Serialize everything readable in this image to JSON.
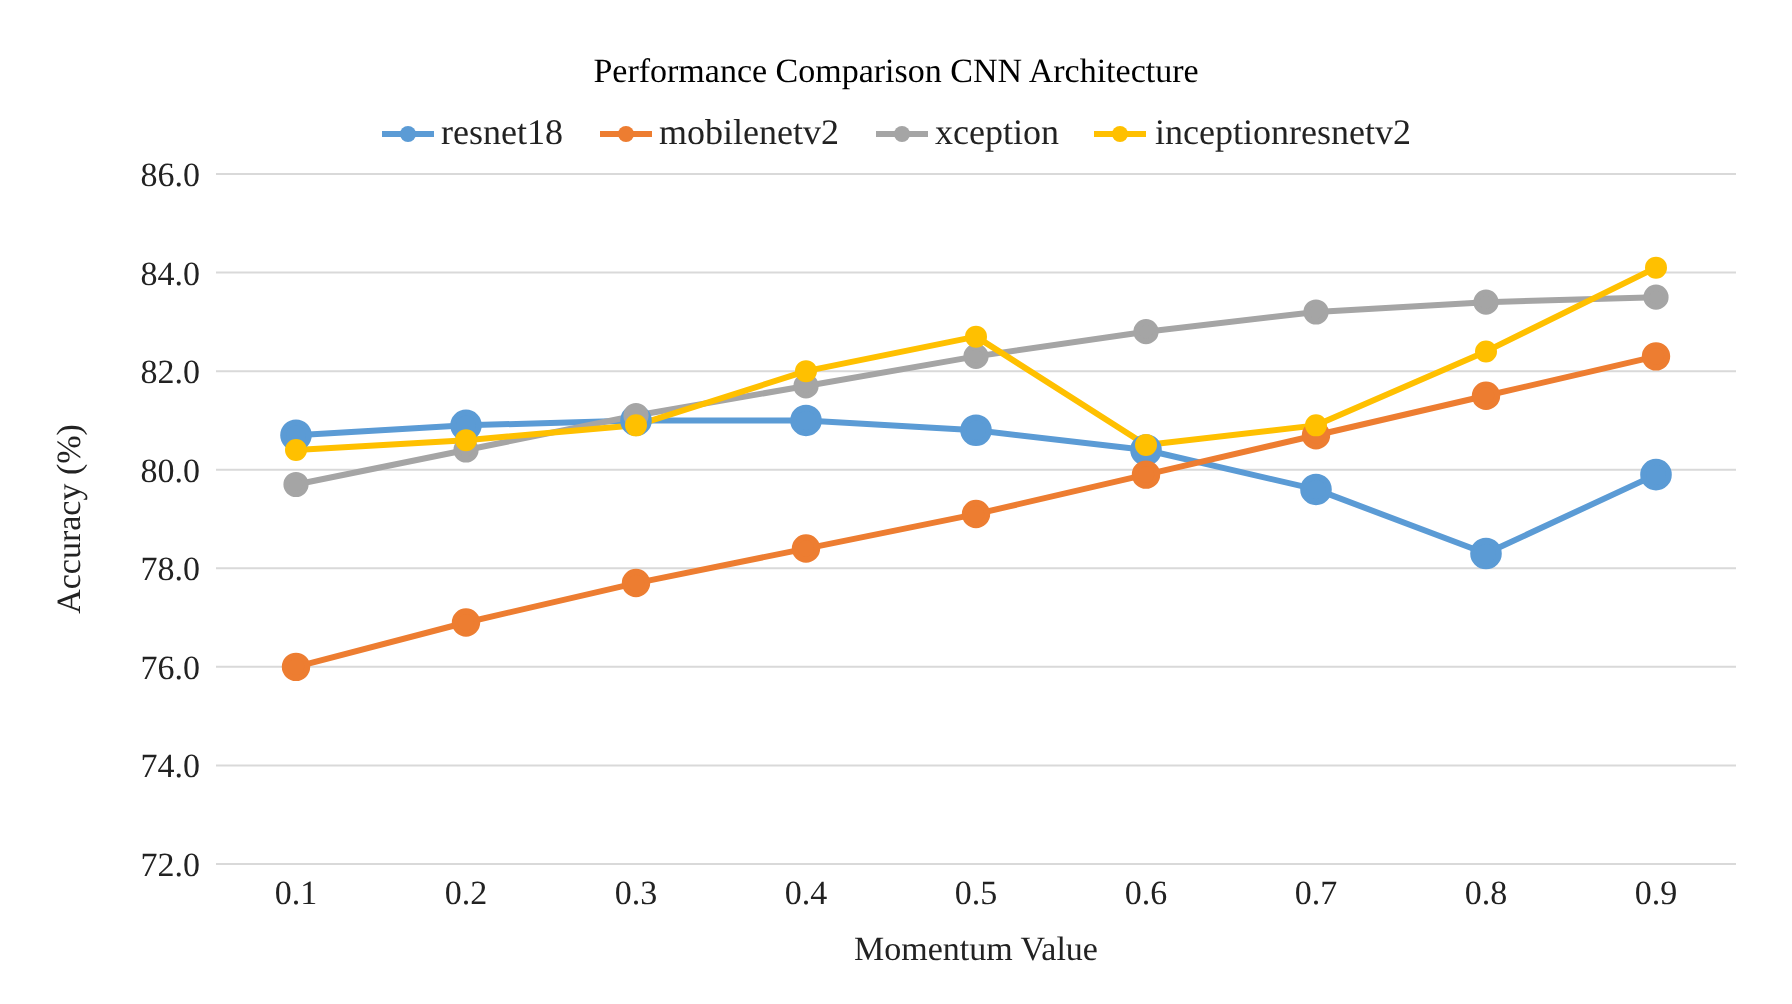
{
  "chart_data": {
    "type": "line",
    "title": "Performance Comparison CNN Architecture",
    "xlabel": "Momentum Value",
    "ylabel": "Accuracy (%)",
    "categories": [
      "0.1",
      "0.2",
      "0.3",
      "0.4",
      "0.5",
      "0.6",
      "0.7",
      "0.8",
      "0.9"
    ],
    "series": [
      {
        "name": "resnet18",
        "color": "#5b9bd5",
        "values": [
          80.7,
          80.9,
          81.0,
          81.0,
          80.8,
          80.4,
          79.6,
          78.3,
          79.9
        ]
      },
      {
        "name": "mobilenetv2",
        "color": "#ed7d31",
        "values": [
          76.0,
          76.9,
          77.7,
          78.4,
          79.1,
          79.9,
          80.7,
          81.5,
          82.3
        ]
      },
      {
        "name": "xception",
        "color": "#a5a5a5",
        "values": [
          79.7,
          80.4,
          81.1,
          81.7,
          82.3,
          82.8,
          83.2,
          83.4,
          83.5
        ]
      },
      {
        "name": "inceptionresnetv2",
        "color": "#ffc000",
        "values": [
          80.4,
          80.6,
          80.9,
          82.0,
          82.7,
          80.5,
          80.9,
          82.4,
          84.1
        ]
      }
    ],
    "ylim": [
      72,
      86
    ],
    "yticks": [
      {
        "value": 72,
        "label": "72.0"
      },
      {
        "value": 74,
        "label": "74.0"
      },
      {
        "value": 76,
        "label": "76.0"
      },
      {
        "value": 78,
        "label": "78.0"
      },
      {
        "value": 80,
        "label": "80.0"
      },
      {
        "value": 82,
        "label": "82.0"
      },
      {
        "value": 84,
        "label": "84.0"
      },
      {
        "value": 86,
        "label": "86.0"
      }
    ],
    "grid": "y",
    "legend": "top",
    "marker": "circle",
    "line_style": "solid"
  }
}
